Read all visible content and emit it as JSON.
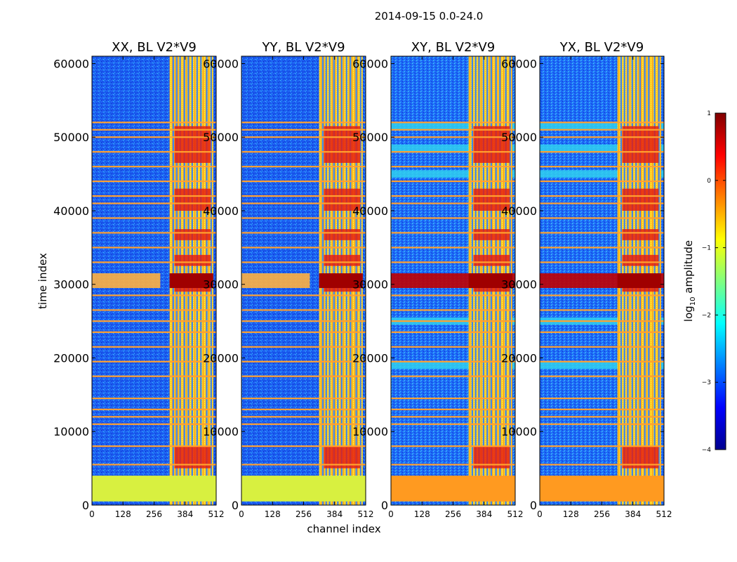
{
  "figure_title": "2014-09-15 0.0-24.0",
  "chart_data": [
    {
      "type": "heatmap",
      "title": "XX, BL V2*V9",
      "xlabel": "channel index",
      "ylabel": "time index",
      "xlim": [
        0,
        512
      ],
      "ylim": [
        0,
        61000
      ],
      "xticks": [
        "0",
        "128",
        "256",
        "384",
        "512"
      ],
      "yticks": [
        "0",
        "10000",
        "20000",
        "30000",
        "40000",
        "50000",
        "60000"
      ],
      "colorscale": "jet",
      "crosshand": false
    },
    {
      "type": "heatmap",
      "title": "YY, BL V2*V9",
      "xlabel": "",
      "ylabel": "",
      "xlim": [
        0,
        512
      ],
      "ylim": [
        0,
        61000
      ],
      "xticks": [
        "0",
        "128",
        "256",
        "384",
        "512"
      ],
      "yticks": [
        "0",
        "10000",
        "20000",
        "30000",
        "40000",
        "50000",
        "60000"
      ],
      "colorscale": "jet",
      "crosshand": false
    },
    {
      "type": "heatmap",
      "title": "XY, BL V2*V9",
      "xlabel": "",
      "ylabel": "",
      "xlim": [
        0,
        512
      ],
      "ylim": [
        0,
        61000
      ],
      "xticks": [
        "0",
        "128",
        "256",
        "384",
        "512"
      ],
      "yticks": [
        "0",
        "10000",
        "20000",
        "30000",
        "40000",
        "50000",
        "60000"
      ],
      "colorscale": "jet",
      "crosshand": true
    },
    {
      "type": "heatmap",
      "title": "YX, BL V2*V9",
      "xlabel": "",
      "ylabel": "",
      "xlim": [
        0,
        512
      ],
      "ylim": [
        0,
        61000
      ],
      "xticks": [
        "0",
        "128",
        "256",
        "384",
        "512"
      ],
      "yticks": [
        "0",
        "10000",
        "20000",
        "30000",
        "40000",
        "50000",
        "60000"
      ],
      "colorscale": "jet",
      "crosshand": true
    }
  ],
  "colorbar": {
    "label_prefix": "log",
    "label_sub": "10",
    "label_suffix": " amplitude",
    "vmin": -4,
    "vmax": 1,
    "ticks": [
      {
        "value": 1,
        "label": "1"
      },
      {
        "value": 0,
        "label": "0"
      },
      {
        "value": -1,
        "label": "−1"
      },
      {
        "value": -2,
        "label": "−2"
      },
      {
        "value": -3,
        "label": "−3"
      },
      {
        "value": -4,
        "label": "−4"
      }
    ]
  },
  "colors": {
    "background": "#00208c",
    "noise": "#1870ff",
    "rfi_band": "#ffa030",
    "strong": "#a00000"
  },
  "heatmap_features": {
    "rfi_line_times": [
      5500,
      8000,
      11000,
      12000,
      13000,
      14500,
      17500,
      19500,
      21500,
      23500,
      25000,
      26500,
      28500,
      33000,
      35000,
      37000,
      39000,
      41000,
      42000,
      44000,
      46000,
      48000,
      50000,
      51000,
      52000
    ],
    "bright_channel_band": [
      320,
      500
    ],
    "bright_channel_lines": [
      332,
      346,
      360,
      378,
      394,
      410,
      430,
      446,
      470,
      488
    ],
    "hot_block_time_ranges": [
      [
        5000,
        8000
      ],
      [
        29000,
        31500
      ],
      [
        32500,
        34000
      ],
      [
        36000,
        37500
      ],
      [
        40000,
        43000
      ],
      [
        46500,
        51500
      ]
    ],
    "saturated_time_range": [
      500,
      4000
    ],
    "strong_band_time_range": [
      29500,
      31500
    ],
    "crosshand_cyan_time_ranges": [
      [
        18500,
        19500
      ],
      [
        24500,
        25500
      ],
      [
        44500,
        45500
      ],
      [
        48000,
        49000
      ],
      [
        51000,
        52000
      ]
    ]
  }
}
